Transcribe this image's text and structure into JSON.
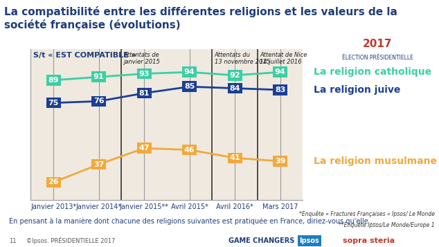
{
  "chart_data": {
    "type": "line",
    "title": "La compatibilité entre les différentes religions et les valeurs de la société française (évolutions)",
    "subtitle": "S/t « EST COMPATIBLE »",
    "categories": [
      "Janvier 2013*",
      "Janvier 2014*",
      "Janvier 2015**",
      "Avril 2015*",
      "Avril 2016*",
      "Mars 2017"
    ],
    "series": [
      {
        "name": "La religion catholique",
        "color": "#3ccfa3",
        "values": [
          89,
          91,
          93,
          94,
          92,
          94
        ]
      },
      {
        "name": "La religion juive",
        "color": "#1c3f94",
        "values": [
          75,
          76,
          81,
          85,
          84,
          83
        ]
      },
      {
        "name": "La religion musulmane",
        "color": "#f2a93b",
        "values": [
          26,
          37,
          47,
          46,
          41,
          39
        ]
      }
    ],
    "ylim": [
      15,
      108
    ],
    "yticks": [],
    "grid": true,
    "data_labels": true,
    "tick_labels": "x",
    "annotations": [
      {
        "text": "Attentats de\njanvier 2015",
        "after": "Janvier 2014*"
      },
      {
        "text": "Attentats du\n13 novembre 2015",
        "after": "Avril 2015*"
      },
      {
        "text": "Attentat de Nice\n14 juillet 2016",
        "after": "Avril 2016*"
      }
    ],
    "question": "En pensant à la manière dont chacune des religions suivantes est pratiquée en France, diriez-vous qu'elle …",
    "footnotes": [
      "*Enquête « Fractures Françaises » Ipsos/ Le Monde",
      "**Enquête Ipsos/Le Monde/Europe 1"
    ],
    "footer": {
      "page": "11",
      "source": "©Ipsos. PRÉSIDENTIELLE 2017",
      "brand": "GAME CHANGERS",
      "logo": "Ipsos",
      "partner": "sopra steria"
    },
    "badge": [
      "2017",
      "ÉLECTION PRÉSIDENTIELLE"
    ]
  }
}
